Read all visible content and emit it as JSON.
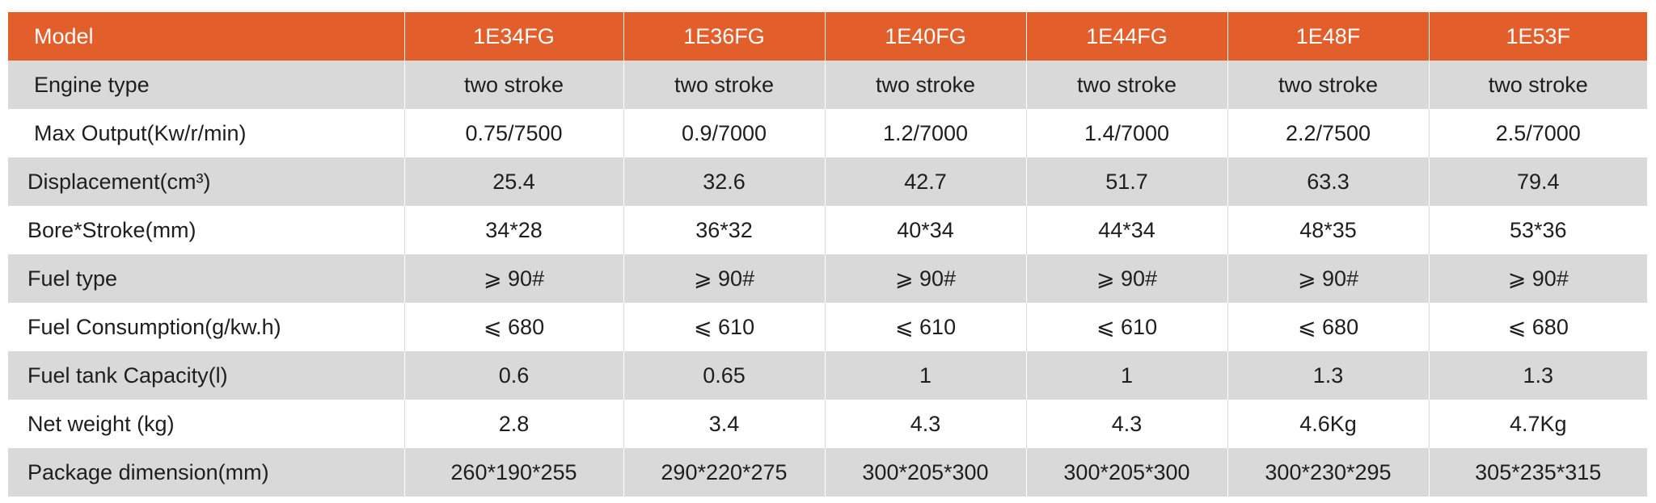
{
  "table": {
    "header": [
      "Model",
      "1E34FG",
      "1E36FG",
      "1E40FG",
      "1E44FG",
      "1E48F",
      "1E53F"
    ],
    "rows": [
      {
        "label": "Engine type",
        "values": [
          "two stroke",
          "two stroke",
          "two stroke",
          "two stroke",
          "two stroke",
          "two stroke"
        ]
      },
      {
        "label": "Max Output(Kw/r/min)",
        "values": [
          "0.75/7500",
          "0.9/7000",
          "1.2/7000",
          "1.4/7000",
          "2.2/7500",
          "2.5/7000"
        ]
      },
      {
        "label": "Displacement(cm³)",
        "values": [
          "25.4",
          "32.6",
          "42.7",
          "51.7",
          "63.3",
          "79.4"
        ]
      },
      {
        "label": "Bore*Stroke(mm)",
        "values": [
          "34*28",
          "36*32",
          "40*34",
          "44*34",
          "48*35",
          "53*36"
        ]
      },
      {
        "label": "Fuel type",
        "values": [
          "⩾ 90#",
          "⩾ 90#",
          "⩾ 90#",
          "⩾ 90#",
          "⩾ 90#",
          "⩾ 90#"
        ]
      },
      {
        "label": "Fuel Consumption(g/kw.h)",
        "values": [
          "⩽ 680",
          "⩽ 610",
          "⩽ 610",
          "⩽ 610",
          "⩽ 680",
          "⩽ 680"
        ]
      },
      {
        "label": "Fuel tank Capacity(l)",
        "values": [
          "0.6",
          "0.65",
          "1",
          "1",
          "1.3",
          "1.3"
        ]
      },
      {
        "label": "Net weight (kg)",
        "values": [
          "2.8",
          "3.4",
          "4.3",
          "4.3",
          "4.6Kg",
          "4.7Kg"
        ]
      },
      {
        "label": "Package dimension(mm)",
        "values": [
          "260*190*255",
          "290*220*275",
          "300*205*300",
          "300*205*300",
          "300*230*295",
          "305*235*315"
        ]
      }
    ]
  },
  "colors": {
    "header_bg": "#e25f2b",
    "header_text": "#ffffff",
    "shaded_row": "#d9d9d9",
    "plain_row": "#ffffff",
    "text": "#1e1e1e"
  }
}
